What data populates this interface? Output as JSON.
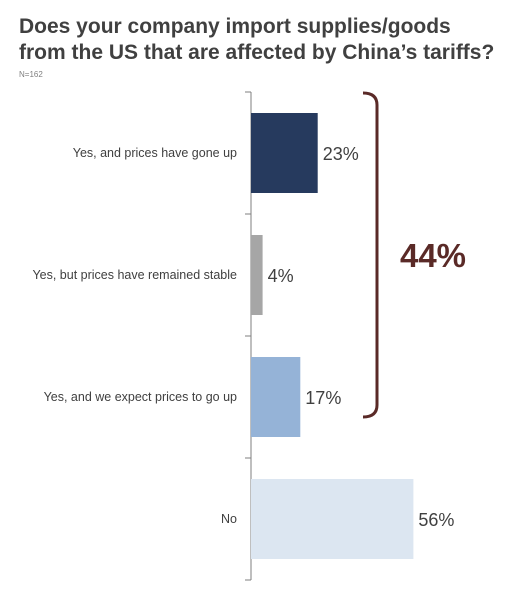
{
  "title": "Does your company import supplies/goods from the US that are affected by China’s tariffs?",
  "note": "N=162",
  "colors": {
    "bracket": "#5a2a27",
    "axis": "#7f7f7f"
  },
  "chart_data": {
    "type": "bar",
    "orientation": "horizontal",
    "categories": [
      "Yes, and prices have gone up",
      "Yes, but prices have remained stable",
      "Yes, and we expect prices to go up",
      "No"
    ],
    "values": [
      23,
      4,
      17,
      56
    ],
    "value_labels": [
      "23%",
      "4%",
      "17%",
      "56%"
    ],
    "colors": [
      "#263a5e",
      "#a6a6a6",
      "#95b3d7",
      "#dce6f1"
    ],
    "xlim": [
      0,
      60
    ],
    "title": "Does your company import supplies/goods from the US that are affected by China’s tariffs?",
    "annotations": [
      {
        "type": "bracket",
        "spans_categories": [
          0,
          2
        ],
        "label": "44%"
      }
    ]
  }
}
